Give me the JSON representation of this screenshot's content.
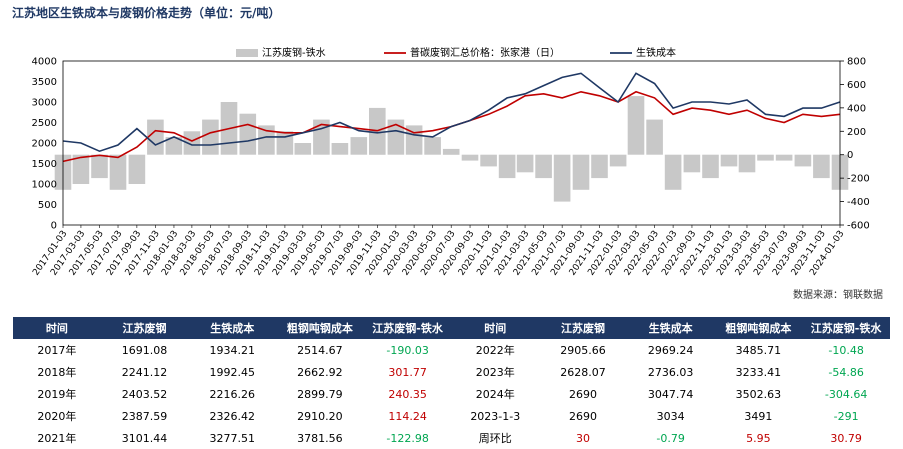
{
  "title": "江苏地区生铁成本与废钢价格走势（单位：元/吨）",
  "source": "数据来源：钢联数据",
  "colors": {
    "scrap": "#c00000",
    "pig_iron": "#1f3864",
    "spread": "#c8c8c8",
    "header_bg": "#1f3864",
    "positive": "#c00000",
    "negative": "#00a651"
  },
  "chart_data": {
    "type": "line",
    "left_axis": {
      "ticks": [
        "0",
        "500",
        "1000",
        "1500",
        "2000",
        "2500",
        "3000",
        "3500",
        "4000"
      ],
      "ylim": [
        0,
        4000
      ]
    },
    "right_axis": {
      "ticks": [
        "-600",
        "-400",
        "-200",
        "0",
        "200",
        "400",
        "600",
        "800"
      ],
      "ylim": [
        -600,
        800
      ]
    },
    "x_tick_labels": [
      "2017-01-03",
      "2017-03-03",
      "2017-05-03",
      "2017-07-03",
      "2017-09-03",
      "2017-11-03",
      "2018-01-03",
      "2018-03-03",
      "2018-05-03",
      "2018-07-03",
      "2018-09-03",
      "2018-11-03",
      "2019-01-03",
      "2019-03-03",
      "2019-05-03",
      "2019-07-03",
      "2019-09-03",
      "2019-11-03",
      "2020-01-03",
      "2020-03-03",
      "2020-05-03",
      "2020-07-03",
      "2020-09-03",
      "2020-11-03",
      "2021-01-03",
      "2021-03-03",
      "2021-05-03",
      "2021-07-03",
      "2021-09-03",
      "2021-11-03",
      "2022-01-03",
      "2022-03-03",
      "2022-05-03",
      "2022-07-03",
      "2022-09-03",
      "2022-11-03",
      "2023-01-03",
      "2023-03-03",
      "2023-05-03",
      "2023-07-03",
      "2023-09-03",
      "2023-11-03",
      "2024-01-03"
    ],
    "legend": [
      {
        "label": "江苏废钢-铁水",
        "kind": "area",
        "axis": "right"
      },
      {
        "label": "普碳废钢汇总价格：张家港（日）",
        "kind": "line",
        "axis": "left"
      },
      {
        "label": "生铁成本",
        "kind": "line",
        "axis": "left"
      }
    ],
    "series": [
      {
        "name": "普碳废钢汇总价格：张家港（日）",
        "x": [
          "2017-01-03",
          "2017-03-03",
          "2017-05-03",
          "2017-07-03",
          "2017-09-03",
          "2017-11-03",
          "2018-01-03",
          "2018-03-03",
          "2018-05-03",
          "2018-07-03",
          "2018-09-03",
          "2018-11-03",
          "2019-01-03",
          "2019-03-03",
          "2019-05-03",
          "2019-07-03",
          "2019-09-03",
          "2019-11-03",
          "2020-01-03",
          "2020-03-03",
          "2020-05-03",
          "2020-07-03",
          "2020-09-03",
          "2020-11-03",
          "2021-01-03",
          "2021-03-03",
          "2021-05-03",
          "2021-07-03",
          "2021-09-03",
          "2021-11-03",
          "2022-01-03",
          "2022-03-03",
          "2022-05-03",
          "2022-07-03",
          "2022-09-03",
          "2022-11-03",
          "2023-01-03",
          "2023-03-03",
          "2023-05-03",
          "2023-07-03",
          "2023-09-03",
          "2023-11-03",
          "2024-01-03"
        ],
        "values": [
          1550,
          1650,
          1700,
          1650,
          1900,
          2300,
          2250,
          2050,
          2250,
          2350,
          2450,
          2300,
          2250,
          2250,
          2450,
          2400,
          2350,
          2300,
          2450,
          2250,
          2300,
          2400,
          2550,
          2700,
          2900,
          3150,
          3200,
          3100,
          3250,
          3150,
          3000,
          3250,
          3100,
          2700,
          2850,
          2800,
          2700,
          2800,
          2600,
          2500,
          2700,
          2650,
          2700
        ]
      },
      {
        "name": "生铁成本",
        "x": [
          "2017-01-03",
          "2017-03-03",
          "2017-05-03",
          "2017-07-03",
          "2017-09-03",
          "2017-11-03",
          "2018-01-03",
          "2018-03-03",
          "2018-05-03",
          "2018-07-03",
          "2018-09-03",
          "2018-11-03",
          "2019-01-03",
          "2019-03-03",
          "2019-05-03",
          "2019-07-03",
          "2019-09-03",
          "2019-11-03",
          "2020-01-03",
          "2020-03-03",
          "2020-05-03",
          "2020-07-03",
          "2020-09-03",
          "2020-11-03",
          "2021-01-03",
          "2021-03-03",
          "2021-05-03",
          "2021-07-03",
          "2021-09-03",
          "2021-11-03",
          "2022-01-03",
          "2022-03-03",
          "2022-05-03",
          "2022-07-03",
          "2022-09-03",
          "2022-11-03",
          "2023-01-03",
          "2023-03-03",
          "2023-05-03",
          "2023-07-03",
          "2023-09-03",
          "2023-11-03",
          "2024-01-03"
        ],
        "values": [
          2050,
          2000,
          1800,
          1950,
          2350,
          1950,
          2150,
          1950,
          1950,
          2000,
          2050,
          2150,
          2150,
          2250,
          2350,
          2500,
          2300,
          2250,
          2300,
          2200,
          2150,
          2400,
          2550,
          2800,
          3100,
          3200,
          3400,
          3600,
          3700,
          3350,
          3000,
          3700,
          3450,
          2850,
          3000,
          3000,
          2950,
          3050,
          2700,
          2650,
          2850,
          2850,
          3000
        ]
      },
      {
        "name": "江苏废钢-铁水",
        "x": [
          "2017-01-03",
          "2017-03-03",
          "2017-05-03",
          "2017-07-03",
          "2017-09-03",
          "2017-11-03",
          "2018-01-03",
          "2018-03-03",
          "2018-05-03",
          "2018-07-03",
          "2018-09-03",
          "2018-11-03",
          "2019-01-03",
          "2019-03-03",
          "2019-05-03",
          "2019-07-03",
          "2019-09-03",
          "2019-11-03",
          "2020-01-03",
          "2020-03-03",
          "2020-05-03",
          "2020-07-03",
          "2020-09-03",
          "2020-11-03",
          "2021-01-03",
          "2021-03-03",
          "2021-05-03",
          "2021-07-03",
          "2021-09-03",
          "2021-11-03",
          "2022-01-03",
          "2022-03-03",
          "2022-05-03",
          "2022-07-03",
          "2022-09-03",
          "2022-11-03",
          "2023-01-03",
          "2023-03-03",
          "2023-05-03",
          "2023-07-03",
          "2023-09-03",
          "2023-11-03",
          "2024-01-03"
        ],
        "values": [
          -300,
          -250,
          -200,
          -300,
          -250,
          300,
          150,
          200,
          300,
          450,
          350,
          250,
          200,
          100,
          300,
          100,
          150,
          400,
          300,
          250,
          150,
          50,
          -50,
          -100,
          -200,
          -150,
          -200,
          -400,
          -300,
          -200,
          -100,
          500,
          300,
          -300,
          -150,
          -200,
          -100,
          -150,
          -50,
          -50,
          -100,
          -200,
          -300
        ]
      }
    ]
  },
  "table": {
    "headers": [
      "时间",
      "江苏废钢",
      "生铁成本",
      "粗钢吨钢成本",
      "江苏废钢-铁水",
      "时间",
      "江苏废钢",
      "生铁成本",
      "粗钢吨钢成本",
      "江苏废钢-铁水"
    ],
    "rows": [
      {
        "c": [
          {
            "v": "2017年"
          },
          {
            "v": "1691.08"
          },
          {
            "v": "1934.21"
          },
          {
            "v": "2514.67"
          },
          {
            "v": "-190.03",
            "s": "negative"
          },
          {
            "v": "2022年"
          },
          {
            "v": "2905.66"
          },
          {
            "v": "2969.24"
          },
          {
            "v": "3485.71"
          },
          {
            "v": "-10.48",
            "s": "negative"
          }
        ]
      },
      {
        "c": [
          {
            "v": "2018年"
          },
          {
            "v": "2241.12"
          },
          {
            "v": "1992.45"
          },
          {
            "v": "2662.92"
          },
          {
            "v": "301.77",
            "s": "positive"
          },
          {
            "v": "2023年"
          },
          {
            "v": "2628.07"
          },
          {
            "v": "2736.03"
          },
          {
            "v": "3233.41"
          },
          {
            "v": "-54.86",
            "s": "negative"
          }
        ]
      },
      {
        "c": [
          {
            "v": "2019年"
          },
          {
            "v": "2403.52"
          },
          {
            "v": "2216.26"
          },
          {
            "v": "2899.79"
          },
          {
            "v": "240.35",
            "s": "positive"
          },
          {
            "v": "2024年"
          },
          {
            "v": "2690"
          },
          {
            "v": "3047.74"
          },
          {
            "v": "3502.63"
          },
          {
            "v": "-304.64",
            "s": "negative"
          }
        ]
      },
      {
        "c": [
          {
            "v": "2020年"
          },
          {
            "v": "2387.59"
          },
          {
            "v": "2326.42"
          },
          {
            "v": "2910.20"
          },
          {
            "v": "114.24",
            "s": "positive"
          },
          {
            "v": "2023-1-3"
          },
          {
            "v": "2690"
          },
          {
            "v": "3034"
          },
          {
            "v": "3491"
          },
          {
            "v": "-291",
            "s": "negative"
          }
        ]
      },
      {
        "c": [
          {
            "v": "2021年"
          },
          {
            "v": "3101.44"
          },
          {
            "v": "3277.51"
          },
          {
            "v": "3781.56"
          },
          {
            "v": "-122.98",
            "s": "negative"
          },
          {
            "v": "周环比"
          },
          {
            "v": "30",
            "s": "positive"
          },
          {
            "v": "-0.79",
            "s": "negative"
          },
          {
            "v": "5.95",
            "s": "positive"
          },
          {
            "v": "30.79",
            "s": "positive"
          }
        ]
      }
    ]
  }
}
